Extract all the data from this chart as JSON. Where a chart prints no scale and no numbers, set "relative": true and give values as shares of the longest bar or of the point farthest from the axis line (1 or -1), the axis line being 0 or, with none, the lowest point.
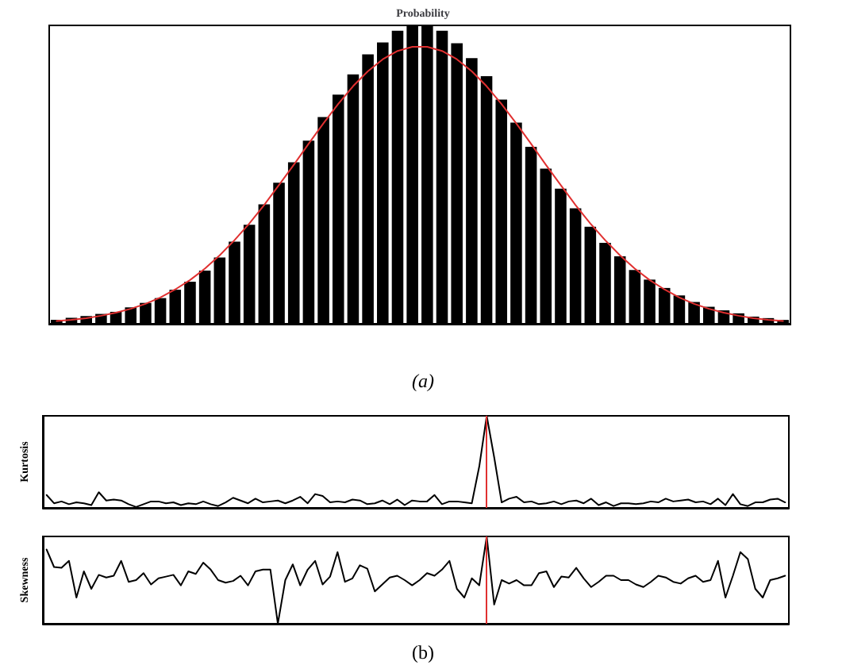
{
  "chart_data": [
    {
      "type": "bar",
      "title": "Probability",
      "relative": true,
      "annotations": [
        "(a)"
      ],
      "categories": [
        null,
        null,
        null,
        null,
        null,
        null,
        null,
        null,
        null,
        null,
        null,
        null,
        null,
        null,
        null,
        null,
        null,
        null,
        null,
        null,
        null,
        null,
        null,
        null,
        null,
        null,
        null,
        null,
        null,
        null,
        null,
        null,
        null,
        null,
        null,
        null,
        null,
        null,
        null,
        null,
        null,
        null,
        null,
        null,
        null,
        null,
        null,
        null,
        null,
        null
      ],
      "series": [
        {
          "color": "#000000",
          "values": [
            0.013,
            0.02,
            0.026,
            0.033,
            0.04,
            0.055,
            0.07,
            0.086,
            0.114,
            0.141,
            0.178,
            0.222,
            0.275,
            0.332,
            0.4,
            0.473,
            0.541,
            0.614,
            0.693,
            0.768,
            0.836,
            0.903,
            0.943,
            0.982,
            0.998,
            1,
            0.982,
            0.94,
            0.89,
            0.83,
            0.751,
            0.674,
            0.593,
            0.52,
            0.453,
            0.387,
            0.325,
            0.271,
            0.226,
            0.18,
            0.148,
            0.12,
            0.095,
            0.073,
            0.057,
            0.045,
            0.035,
            0.024,
            0.019,
            0.013
          ]
        }
      ]
    },
    {
      "type": "line",
      "relative": true,
      "marker": "none",
      "categories": [
        null,
        null,
        null,
        null,
        null,
        null,
        null,
        null,
        null,
        null,
        null,
        null,
        null,
        null,
        null,
        null,
        null,
        null,
        null,
        null,
        null,
        null,
        null,
        null,
        null,
        null,
        null,
        null,
        null,
        null,
        null,
        null,
        null,
        null,
        null,
        null,
        null,
        null,
        null,
        null,
        null,
        null,
        null,
        null,
        null,
        null,
        null,
        null,
        null,
        null
      ],
      "series": [
        {
          "color": "#e03030",
          "values": [
            0.01,
            0.014,
            0.02,
            0.029,
            0.04,
            0.054,
            0.072,
            0.095,
            0.124,
            0.158,
            0.199,
            0.247,
            0.302,
            0.362,
            0.429,
            0.501,
            0.574,
            0.65,
            0.724,
            0.794,
            0.858,
            0.912,
            0.955,
            0.985,
            1,
            1,
            0.985,
            0.955,
            0.912,
            0.858,
            0.794,
            0.724,
            0.65,
            0.574,
            0.501,
            0.429,
            0.362,
            0.302,
            0.247,
            0.199,
            0.158,
            0.124,
            0.095,
            0.072,
            0.054,
            0.04,
            0.029,
            0.02,
            0.014,
            0.01
          ]
        }
      ]
    },
    {
      "type": "line",
      "relative": true,
      "ylabel": "Kurtosis",
      "marker": "none",
      "ref_lines": [
        {
          "axis": "x",
          "color": "#e03030"
        }
      ],
      "categories": [
        null,
        null,
        null,
        null,
        null,
        null,
        null,
        null,
        null,
        null,
        null,
        null,
        null,
        null,
        null,
        null,
        null,
        null,
        null,
        null,
        null,
        null,
        null,
        null,
        null,
        null,
        null,
        null,
        null,
        null,
        null,
        null,
        null,
        null,
        null,
        null,
        null,
        null,
        null,
        null,
        null,
        null,
        null,
        null,
        null,
        null,
        null,
        null,
        null,
        null,
        null,
        null,
        null,
        null,
        null,
        null,
        null,
        null,
        null,
        null,
        null,
        null,
        null,
        null,
        null,
        null,
        null,
        null,
        null,
        null,
        null,
        null,
        null,
        null,
        null,
        null,
        null,
        null,
        null,
        null,
        null,
        null,
        null,
        null,
        null,
        null,
        null,
        null,
        null,
        null,
        null,
        null,
        null,
        null,
        null,
        null,
        null,
        null,
        null,
        null
      ],
      "series": [
        {
          "color": "#000000",
          "values": [
            0.14,
            0.05,
            0.07,
            0.04,
            0.06,
            0.05,
            0.03,
            0.17,
            0.08,
            0.09,
            0.08,
            0.04,
            0.01,
            0.04,
            0.07,
            0.07,
            0.05,
            0.06,
            0.03,
            0.05,
            0.04,
            0.07,
            0.04,
            0.02,
            0.06,
            0.11,
            0.08,
            0.05,
            0.1,
            0.06,
            0.07,
            0.08,
            0.05,
            0.08,
            0.12,
            0.05,
            0.15,
            0.13,
            0.06,
            0.07,
            0.06,
            0.09,
            0.08,
            0.04,
            0.05,
            0.08,
            0.04,
            0.09,
            0.03,
            0.08,
            0.07,
            0.07,
            0.14,
            0.04,
            0.07,
            0.07,
            0.06,
            0.05,
            0.45,
            1.0,
            0.55,
            0.06,
            0.1,
            0.12,
            0.06,
            0.07,
            0.04,
            0.05,
            0.07,
            0.04,
            0.07,
            0.08,
            0.05,
            0.1,
            0.03,
            0.06,
            0.02,
            0.05,
            0.05,
            0.04,
            0.05,
            0.07,
            0.06,
            0.1,
            0.07,
            0.08,
            0.09,
            0.06,
            0.07,
            0.04,
            0.1,
            0.03,
            0.15,
            0.04,
            0.02,
            0.06,
            0.06,
            0.09,
            0.1,
            0.06
          ]
        }
      ]
    },
    {
      "type": "line",
      "relative": true,
      "ylabel": "Skewness",
      "marker": "none",
      "annotations": [
        "(b)"
      ],
      "ref_lines": [
        {
          "axis": "x",
          "color": "#e03030"
        }
      ],
      "categories": [
        null,
        null,
        null,
        null,
        null,
        null,
        null,
        null,
        null,
        null,
        null,
        null,
        null,
        null,
        null,
        null,
        null,
        null,
        null,
        null,
        null,
        null,
        null,
        null,
        null,
        null,
        null,
        null,
        null,
        null,
        null,
        null,
        null,
        null,
        null,
        null,
        null,
        null,
        null,
        null,
        null,
        null,
        null,
        null,
        null,
        null,
        null,
        null,
        null,
        null,
        null,
        null,
        null,
        null,
        null,
        null,
        null,
        null,
        null,
        null,
        null,
        null,
        null,
        null,
        null,
        null,
        null,
        null,
        null,
        null,
        null,
        null,
        null,
        null,
        null,
        null,
        null,
        null,
        null,
        null,
        null,
        null,
        null,
        null,
        null,
        null,
        null,
        null,
        null,
        null,
        null,
        null,
        null,
        null,
        null,
        null,
        null,
        null,
        null,
        null
      ],
      "series": [
        {
          "color": "#000000",
          "values": [
            0.85,
            0.65,
            0.64,
            0.72,
            0.3,
            0.6,
            0.4,
            0.56,
            0.53,
            0.55,
            0.72,
            0.48,
            0.5,
            0.58,
            0.45,
            0.52,
            0.54,
            0.56,
            0.44,
            0.6,
            0.57,
            0.7,
            0.62,
            0.5,
            0.47,
            0.49,
            0.55,
            0.44,
            0.6,
            0.62,
            0.62,
            0.0,
            0.5,
            0.68,
            0.44,
            0.62,
            0.72,
            0.45,
            0.54,
            0.82,
            0.48,
            0.52,
            0.67,
            0.63,
            0.37,
            0.45,
            0.53,
            0.55,
            0.5,
            0.44,
            0.5,
            0.58,
            0.55,
            0.62,
            0.72,
            0.4,
            0.3,
            0.52,
            0.44,
            1.0,
            0.22,
            0.5,
            0.46,
            0.5,
            0.44,
            0.44,
            0.58,
            0.6,
            0.42,
            0.54,
            0.53,
            0.64,
            0.52,
            0.42,
            0.48,
            0.55,
            0.55,
            0.5,
            0.5,
            0.45,
            0.42,
            0.48,
            0.55,
            0.53,
            0.48,
            0.46,
            0.52,
            0.55,
            0.48,
            0.5,
            0.72,
            0.3,
            0.55,
            0.82,
            0.74,
            0.4,
            0.3,
            0.5,
            0.52,
            0.55
          ]
        }
      ]
    }
  ]
}
